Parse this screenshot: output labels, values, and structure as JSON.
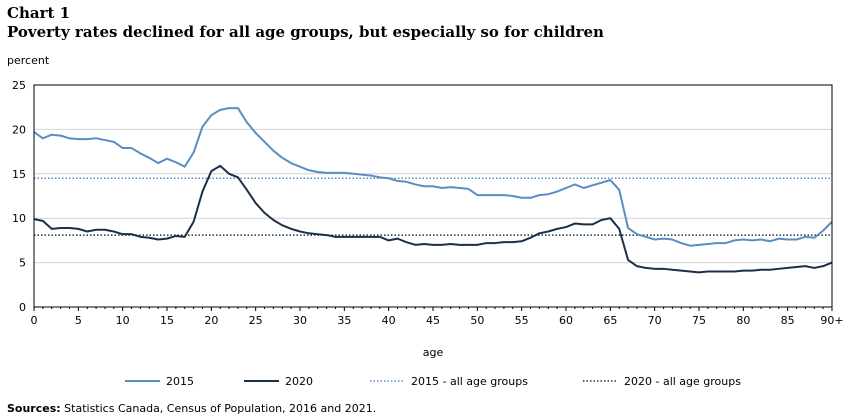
{
  "chart_label": "Chart 1",
  "title": "Poverty rates declined for all age groups, but especially so for children",
  "source_label": "Sources:",
  "source_text": "Statistics Canada, Census of Population, 2016 and 2021.",
  "chart_data": {
    "type": "line",
    "ylabel": "percent",
    "xlabel": "age",
    "ylim": [
      0,
      25
    ],
    "xlim": [
      0,
      90
    ],
    "y_ticks": [
      "0",
      "5",
      "10",
      "15",
      "20",
      "25"
    ],
    "x_ticks": [
      "0",
      "5",
      "10",
      "15",
      "20",
      "25",
      "30",
      "35",
      "40",
      "45",
      "50",
      "55",
      "60",
      "65",
      "70",
      "75",
      "80",
      "85",
      "90+"
    ],
    "grid": "horizontal",
    "legend_position": "bottom",
    "x": [
      0,
      1,
      2,
      3,
      4,
      5,
      6,
      7,
      8,
      9,
      10,
      11,
      12,
      13,
      14,
      15,
      16,
      17,
      18,
      19,
      20,
      21,
      22,
      23,
      24,
      25,
      26,
      27,
      28,
      29,
      30,
      31,
      32,
      33,
      34,
      35,
      36,
      37,
      38,
      39,
      40,
      41,
      42,
      43,
      44,
      45,
      46,
      47,
      48,
      49,
      50,
      51,
      52,
      53,
      54,
      55,
      56,
      57,
      58,
      59,
      60,
      61,
      62,
      63,
      64,
      65,
      66,
      67,
      68,
      69,
      70,
      71,
      72,
      73,
      74,
      75,
      76,
      77,
      78,
      79,
      80,
      81,
      82,
      83,
      84,
      85,
      86,
      87,
      88,
      89,
      90
    ],
    "series": [
      {
        "name": "2015",
        "color": "#5b8dc2",
        "style": "solid",
        "values": [
          19.7,
          19.0,
          19.4,
          19.3,
          19.0,
          18.9,
          18.9,
          19.0,
          18.8,
          18.6,
          17.9,
          17.9,
          17.3,
          16.8,
          16.2,
          16.7,
          16.3,
          15.8,
          17.4,
          20.3,
          21.6,
          22.2,
          22.4,
          22.4,
          20.8,
          19.6,
          18.6,
          17.6,
          16.8,
          16.2,
          15.8,
          15.4,
          15.2,
          15.1,
          15.1,
          15.1,
          15.0,
          14.9,
          14.8,
          14.6,
          14.5,
          14.2,
          14.1,
          13.8,
          13.6,
          13.6,
          13.4,
          13.5,
          13.4,
          13.3,
          12.6,
          12.6,
          12.6,
          12.6,
          12.5,
          12.3,
          12.3,
          12.6,
          12.7,
          13.0,
          13.4,
          13.8,
          13.4,
          13.7,
          14.0,
          14.3,
          13.2,
          8.9,
          8.2,
          7.9,
          7.6,
          7.7,
          7.6,
          7.2,
          6.9,
          7.0,
          7.1,
          7.2,
          7.2,
          7.5,
          7.6,
          7.5,
          7.6,
          7.4,
          7.7,
          7.6,
          7.6,
          7.9,
          7.8,
          8.6,
          9.6
        ]
      },
      {
        "name": "2020",
        "color": "#1c2f4a",
        "style": "solid",
        "values": [
          9.9,
          9.7,
          8.8,
          8.9,
          8.9,
          8.8,
          8.5,
          8.7,
          8.7,
          8.5,
          8.2,
          8.2,
          7.9,
          7.8,
          7.6,
          7.7,
          8.0,
          7.9,
          9.6,
          13.0,
          15.3,
          15.9,
          15.0,
          14.6,
          13.2,
          11.7,
          10.6,
          9.8,
          9.2,
          8.8,
          8.5,
          8.3,
          8.2,
          8.1,
          7.9,
          7.9,
          7.9,
          7.9,
          7.9,
          7.9,
          7.5,
          7.7,
          7.3,
          7.0,
          7.1,
          7.0,
          7.0,
          7.1,
          7.0,
          7.0,
          7.0,
          7.2,
          7.2,
          7.3,
          7.3,
          7.4,
          7.8,
          8.3,
          8.5,
          8.8,
          9.0,
          9.4,
          9.3,
          9.3,
          9.8,
          10.0,
          8.8,
          5.3,
          4.6,
          4.4,
          4.3,
          4.3,
          4.2,
          4.1,
          4.0,
          3.9,
          4.0,
          4.0,
          4.0,
          4.0,
          4.1,
          4.1,
          4.2,
          4.2,
          4.3,
          4.4,
          4.5,
          4.6,
          4.4,
          4.6,
          5.0
        ]
      }
    ],
    "reference_lines": [
      {
        "name": "2015 - all age groups",
        "value": 14.5,
        "color": "#5b8dc2",
        "style": "dotted"
      },
      {
        "name": "2020 - all age groups",
        "value": 8.1,
        "color": "#1c2f4a",
        "style": "dotted"
      }
    ]
  }
}
